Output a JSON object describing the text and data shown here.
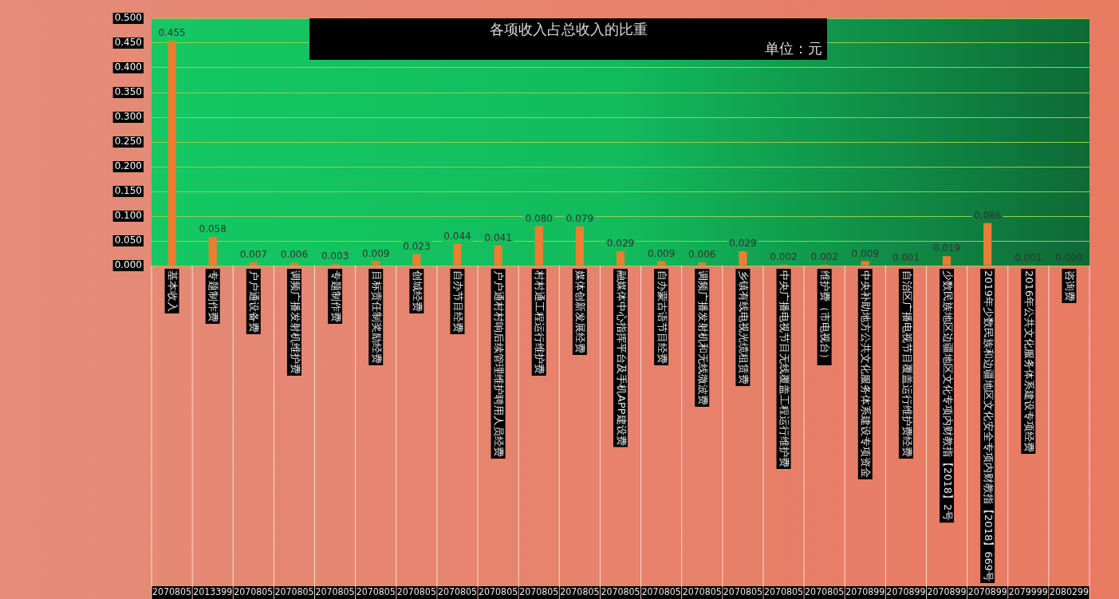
{
  "chart_data": {
    "type": "bar",
    "title": "各项收入占总收入的比重",
    "subtitle": "单位：元",
    "categories": [
      [
        "基本收入",
        "2070805"
      ],
      [
        "专题制作费",
        "2013399"
      ],
      [
        "户户通设备费",
        "2070805"
      ],
      [
        "调频广播发射机维护费",
        "2070805"
      ],
      [
        "专题制作费",
        "2070805"
      ],
      [
        "目标责任制奖励经费",
        "2070805"
      ],
      [
        "创城经费",
        "2070805"
      ],
      [
        "自办节目经费",
        "2070805"
      ],
      [
        "户户通村村响后续管理维护聘用人员经费",
        "2070805"
      ],
      [
        "村村通工程运行维护费",
        "2070805"
      ],
      [
        "媒体创新发展经费",
        "2070805"
      ],
      [
        "融媒体中心指挥平台及手机APP建设费",
        "2070805"
      ],
      [
        "自办蒙古语节目经费",
        "2070805"
      ],
      [
        "调频广播发射机和无线微波费",
        "2070805"
      ],
      [
        "乡镇有线电视光缆租赁费",
        "2070805"
      ],
      [
        "中央广播电视节目无线覆盖工程运行维护费",
        "2070805"
      ],
      [
        "维护费（市电视台）",
        "2070805"
      ],
      [
        "中央补助地方公共文化服务体系建设专项资金",
        "2070899"
      ],
      [
        "自治区广播电视节目覆盖运行维护费经费",
        "2070899"
      ],
      [
        "少数民族地区边疆地区文化专项内财教指【2018】2号",
        "2070899"
      ],
      [
        "2019年少数民族和边疆地区文化安全专项内财教指【2018】669号",
        "2070899"
      ],
      [
        "2016年公共文化服务体系建设专项经费",
        "2079999"
      ],
      [
        "咨询费",
        "2080299"
      ]
    ],
    "values": [
      0.455,
      0.058,
      0.007,
      0.006,
      0.003,
      0.009,
      0.023,
      0.044,
      0.041,
      0.08,
      0.079,
      0.029,
      0.009,
      0.006,
      0.029,
      0.002,
      0.002,
      0.009,
      0.001,
      0.019,
      0.086,
      0.001,
      0.0
    ],
    "value_labels": [
      "0.455",
      "0.058",
      "0.007",
      "0.006",
      "0.003",
      "0.009",
      "0.023",
      "0.044",
      "0.041",
      "0.080",
      "0.079",
      "0.029",
      "0.009",
      "0.006",
      "0.029",
      "0.002",
      "0.002",
      "0.009",
      "0.001",
      "0.019",
      "0.086",
      "0.001",
      "0.000"
    ],
    "color": "#ed7d31",
    "ylim": [
      0,
      0.5
    ],
    "yticks": [
      {
        "value": 0,
        "label": "0.000"
      },
      {
        "value": 0.05,
        "label": "0.050"
      },
      {
        "value": 0.1,
        "label": "0.100"
      },
      {
        "value": 0.15,
        "label": "0.150"
      },
      {
        "value": 0.2,
        "label": "0.200"
      },
      {
        "value": 0.25,
        "label": "0.250"
      },
      {
        "value": 0.3,
        "label": "0.300"
      },
      {
        "value": 0.35,
        "label": "0.350"
      },
      {
        "value": 0.4,
        "label": "0.400"
      },
      {
        "value": 0.45,
        "label": "0.450"
      },
      {
        "value": 0.5,
        "label": "0.500"
      }
    ],
    "grid": "y",
    "legend": false
  }
}
